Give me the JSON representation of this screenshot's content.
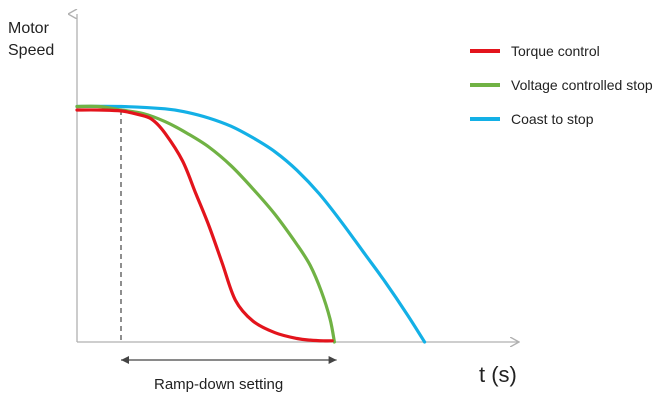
{
  "chart_data": {
    "type": "line",
    "title": "",
    "ylabel": [
      "Motor",
      "Speed"
    ],
    "xlabel": "t (s)",
    "grid": false,
    "legend_position": "top-right",
    "annotation": "Ramp-down setting",
    "ylim": [
      0,
      1
    ],
    "xlim": [
      0,
      1
    ],
    "ramp_marker_x": 0.1,
    "ramp_range": [
      0.1,
      0.59
    ],
    "series": [
      {
        "name": "Torque control",
        "color": "#e3141c",
        "x": [
          0.0,
          0.05,
          0.1,
          0.14,
          0.17,
          0.2,
          0.24,
          0.27,
          0.3,
          0.33,
          0.36,
          0.4,
          0.45,
          0.5,
          0.53,
          0.56,
          0.58
        ],
        "y": [
          1.0,
          1.0,
          0.996,
          0.98,
          0.96,
          0.9,
          0.78,
          0.64,
          0.5,
          0.34,
          0.18,
          0.09,
          0.04,
          0.015,
          0.008,
          0.005,
          0.005
        ]
      },
      {
        "name": "Voltage controlled stop",
        "color": "#70b244",
        "x": [
          0.0,
          0.05,
          0.1,
          0.15,
          0.2,
          0.25,
          0.3,
          0.35,
          0.4,
          0.45,
          0.5,
          0.53,
          0.555,
          0.575,
          0.585
        ],
        "y": [
          1.015,
          1.015,
          1.0,
          0.985,
          0.95,
          0.9,
          0.84,
          0.76,
          0.66,
          0.55,
          0.42,
          0.33,
          0.22,
          0.1,
          0.0
        ]
      },
      {
        "name": "Coast to stop",
        "color": "#13b0e6",
        "x": [
          0.0,
          0.1,
          0.2,
          0.25,
          0.3,
          0.35,
          0.4,
          0.45,
          0.5,
          0.55,
          0.6,
          0.65,
          0.7,
          0.75,
          0.79
        ],
        "y": [
          1.015,
          1.015,
          1.005,
          0.99,
          0.965,
          0.93,
          0.88,
          0.82,
          0.74,
          0.64,
          0.52,
          0.39,
          0.26,
          0.12,
          0.0
        ]
      }
    ]
  }
}
